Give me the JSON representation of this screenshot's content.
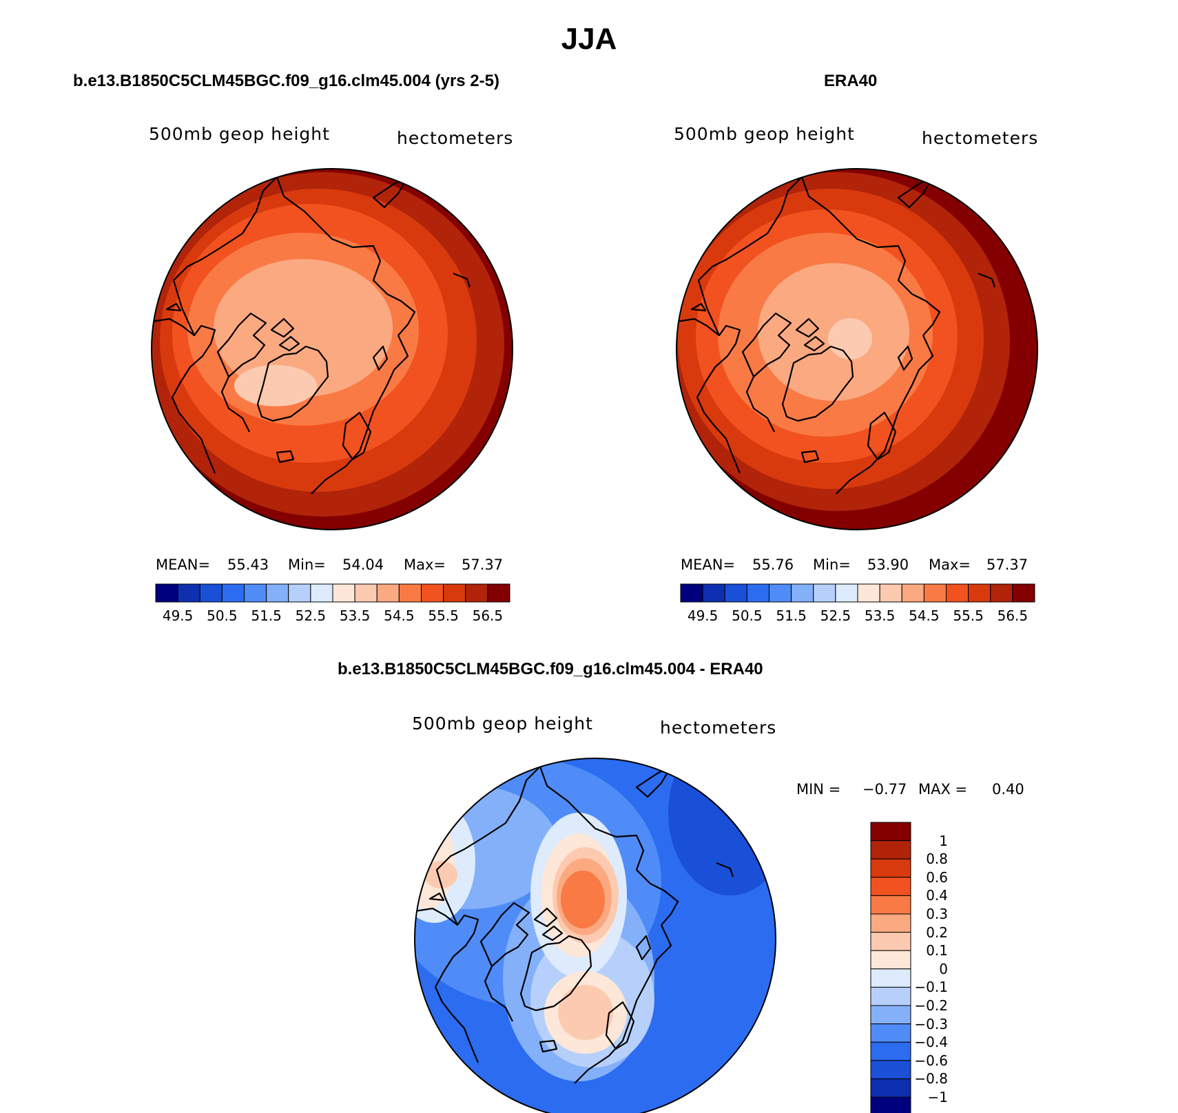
{
  "title": "JJA",
  "panels": [
    {
      "id": "model",
      "title": "b.e13.B1850C5CLM45BGC.f09_g16.clm45.004 (yrs 2-5)",
      "field_label": "500mb geop height",
      "units_label": "hectometers",
      "stats": {
        "mean_label": "MEAN=",
        "mean": "55.43",
        "min_label": "Min=",
        "min": "54.04",
        "max_label": "Max=",
        "max": "57.37"
      },
      "colorbar_ticks": [
        "49.5",
        "50.5",
        "51.5",
        "52.5",
        "53.5",
        "54.5",
        "55.5",
        "56.5"
      ]
    },
    {
      "id": "obs",
      "title": "ERA40",
      "field_label": "500mb geop height",
      "units_label": "hectometers",
      "stats": {
        "mean_label": "MEAN=",
        "mean": "55.76",
        "min_label": "Min=",
        "min": "53.90",
        "max_label": "Max=",
        "max": "57.37"
      },
      "colorbar_ticks": [
        "49.5",
        "50.5",
        "51.5",
        "52.5",
        "53.5",
        "54.5",
        "55.5",
        "56.5"
      ]
    }
  ],
  "difference": {
    "title": "b.e13.B1850C5CLM45BGC.f09_g16.clm45.004 - ERA40",
    "field_label": "500mb geop height",
    "units_label": "hectometers",
    "stats": {
      "min_label": "MIN =",
      "min": "−0.77",
      "max_label": "MAX =",
      "max": "0.40"
    },
    "colorbar_ticks": [
      "1",
      "0.8",
      "0.6",
      "0.4",
      "0.3",
      "0.2",
      "0.1",
      "0",
      "−0.1",
      "−0.2",
      "−0.3",
      "−0.4",
      "−0.6",
      "−0.8",
      "−1"
    ]
  },
  "colors": {
    "abs_scale": [
      "#00007f",
      "#0d2fb0",
      "#1a4fd8",
      "#2b6cf0",
      "#4f8cf7",
      "#84b0fa",
      "#b6d0fb",
      "#ddebfc",
      "#fde7d8",
      "#fccab0",
      "#fba981",
      "#f97a45",
      "#f2521f",
      "#d83a0e",
      "#b12409",
      "#840000"
    ],
    "diff_scale": [
      "#840000",
      "#b12409",
      "#d83a0e",
      "#f2521f",
      "#f97a45",
      "#fba981",
      "#fccab0",
      "#fde7d8",
      "#ddebfc",
      "#b6d0fb",
      "#84b0fa",
      "#4f8cf7",
      "#2b6cf0",
      "#1a4fd8",
      "#0d2fb0",
      "#00007f"
    ]
  }
}
